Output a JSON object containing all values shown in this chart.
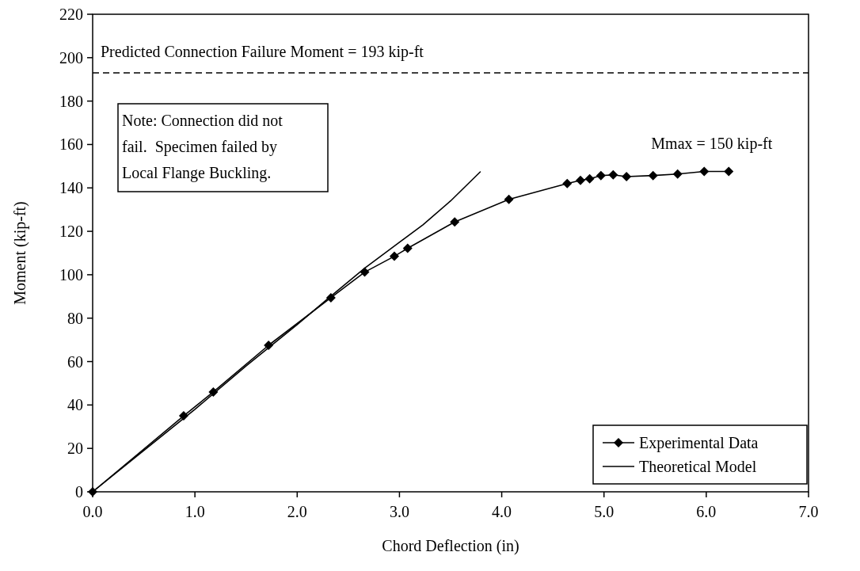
{
  "chart_data": {
    "type": "line",
    "xlabel": "Chord Deflection (in)",
    "ylabel": "Moment (kip-ft)",
    "xlim": [
      0,
      7
    ],
    "ylim": [
      0,
      220
    ],
    "xticks": [
      {
        "value": 0,
        "label": "0.0"
      },
      {
        "value": 1,
        "label": "1.0"
      },
      {
        "value": 2,
        "label": "2.0"
      },
      {
        "value": 3,
        "label": "3.0"
      },
      {
        "value": 4,
        "label": "4.0"
      },
      {
        "value": 5,
        "label": "5.0"
      },
      {
        "value": 6,
        "label": "6.0"
      },
      {
        "value": 7,
        "label": "7.0"
      }
    ],
    "yticks": [
      0,
      20,
      40,
      60,
      80,
      100,
      120,
      140,
      160,
      180,
      200,
      220
    ],
    "grid": false,
    "legend": "bottom right",
    "series": [
      {
        "name": "Experimental Data",
        "color": "#000000",
        "marker": "diamond",
        "x": [
          0,
          0.89,
          1.18,
          1.72,
          2.33,
          2.66,
          2.95,
          3.08,
          3.54,
          4.07,
          4.64,
          4.77,
          4.86,
          4.97,
          5.09,
          5.22,
          5.48,
          5.72,
          5.98,
          6.22
        ],
        "values": [
          0,
          35,
          46,
          67.5,
          89.4,
          101.2,
          108.5,
          112.2,
          124.3,
          134.7,
          142,
          143.5,
          144.2,
          145.7,
          146,
          145.2,
          145.7,
          146.4,
          147.6,
          147.6
        ]
      },
      {
        "name": "Theoretical Model",
        "color": "#000000",
        "marker": "none",
        "x": [
          0,
          0.5,
          1,
          1.5,
          2,
          2.3,
          2.66,
          3,
          3.23,
          3.5,
          3.79
        ],
        "values": [
          0,
          19,
          38,
          58,
          77,
          89,
          103,
          115,
          123,
          134,
          147.4
        ]
      }
    ],
    "ref_lines": [
      {
        "axis": "y",
        "value": 193,
        "label": "Predicted Connection Failure Moment = 193 kip-ft",
        "line_style": "dashed",
        "color": "#000000"
      }
    ],
    "annotations": [
      "Note: Connection did not fail.  Specimen failed by Local Flange Buckling.",
      {
        "text": "Mmax = 150 kip-ft",
        "x": 6.22,
        "y": 147.6
      }
    ]
  }
}
